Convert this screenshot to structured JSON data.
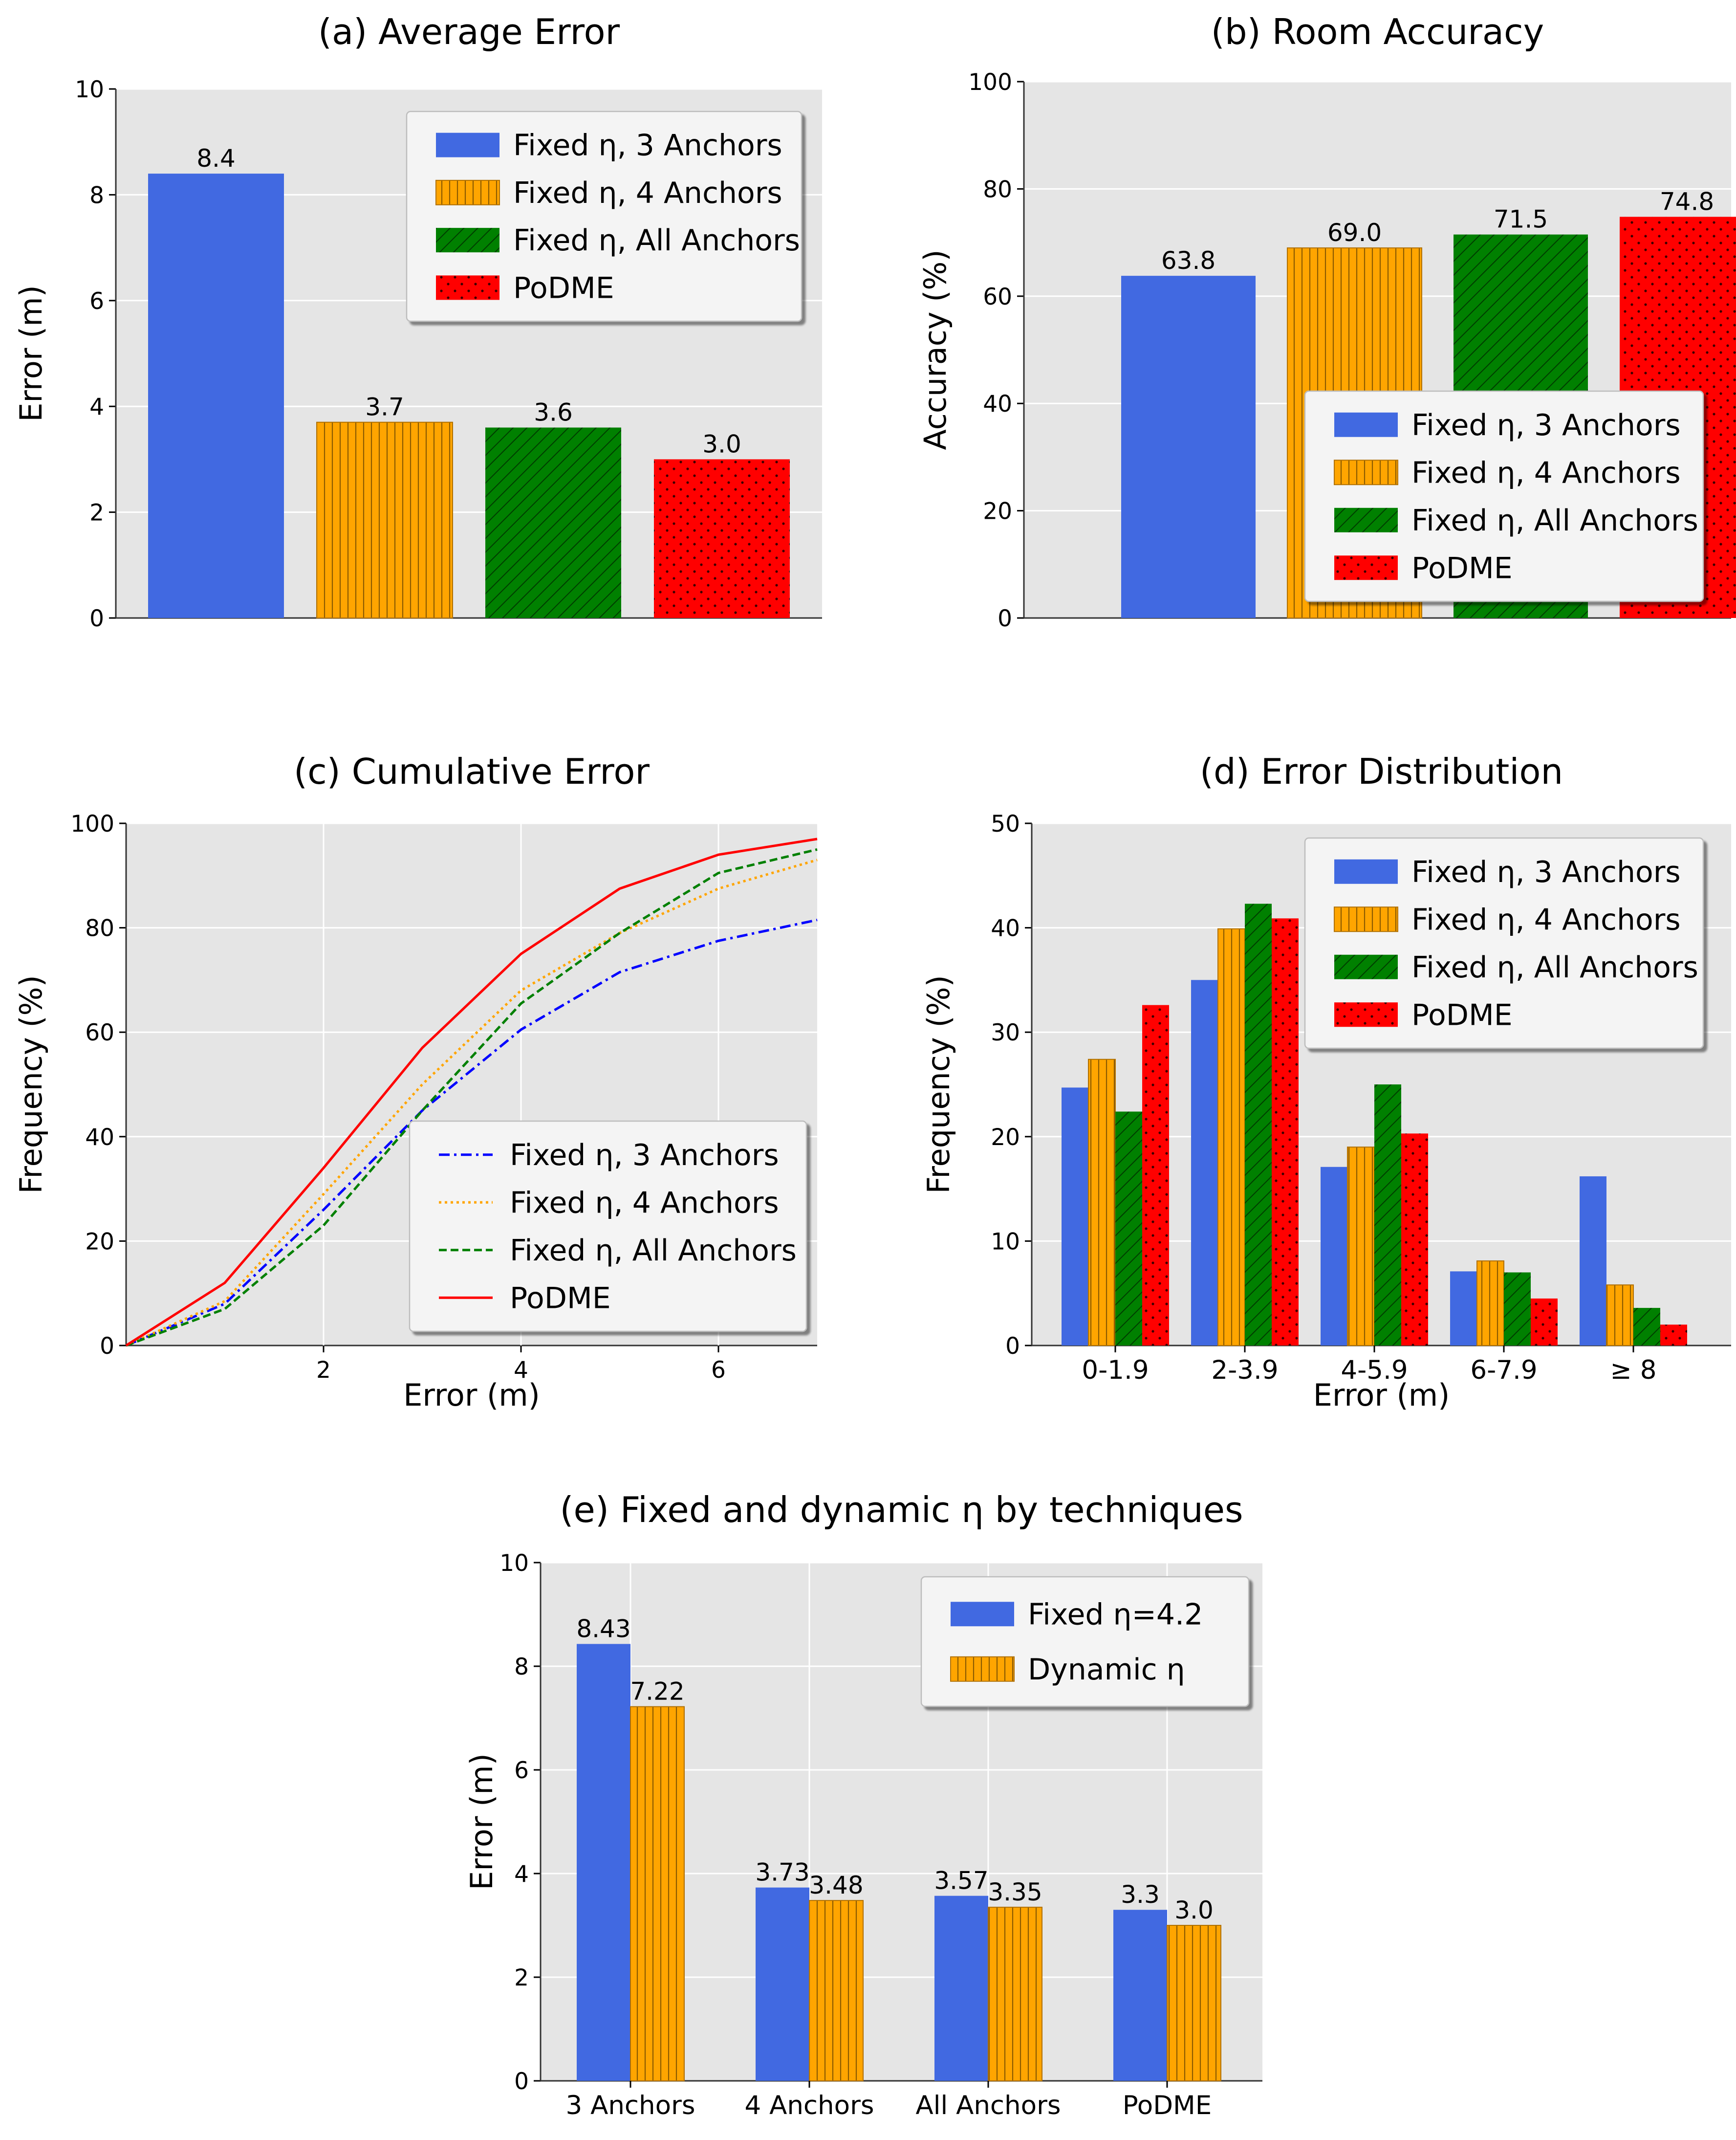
{
  "chart_data": [
    {
      "id": "a",
      "type": "bar",
      "title": "(a) Average Error",
      "xlabel": "",
      "ylabel": "Error (m)",
      "ylim": [
        0,
        10
      ],
      "yticks": [
        "0",
        "2",
        "4",
        "6",
        "8",
        "10"
      ],
      "grid": true,
      "legend_position": "top-right",
      "series": [
        {
          "name": "Fixed η, 3 Anchors",
          "value": 8.4,
          "label": "8.4",
          "color": "#4169E1",
          "pattern": "solid"
        },
        {
          "name": "Fixed η, 4 Anchors",
          "value": 3.7,
          "label": "3.7",
          "color": "#FFA500",
          "pattern": "vertical"
        },
        {
          "name": "Fixed η, All Anchors",
          "value": 3.6,
          "label": "3.6",
          "color": "#008000",
          "pattern": "diagonal"
        },
        {
          "name": "PoDME",
          "value": 3.0,
          "label": "3.0",
          "color": "#FF0000",
          "pattern": "dots"
        }
      ]
    },
    {
      "id": "b",
      "type": "bar",
      "title": "(b) Room Accuracy",
      "xlabel": "",
      "ylabel": "Accuracy (%)",
      "ylim": [
        0,
        100
      ],
      "yticks": [
        "0",
        "20",
        "40",
        "60",
        "80",
        "100"
      ],
      "grid": true,
      "legend_position": "lower-right",
      "series": [
        {
          "name": "Fixed η, 3 Anchors",
          "value": 63.8,
          "label": "63.8",
          "color": "#4169E1",
          "pattern": "solid"
        },
        {
          "name": "Fixed η, 4 Anchors",
          "value": 69.0,
          "label": "69.0",
          "color": "#FFA500",
          "pattern": "vertical"
        },
        {
          "name": "Fixed η, All Anchors",
          "value": 71.5,
          "label": "71.5",
          "color": "#008000",
          "pattern": "diagonal"
        },
        {
          "name": "PoDME",
          "value": 74.8,
          "label": "74.8",
          "color": "#FF0000",
          "pattern": "dots"
        }
      ]
    },
    {
      "id": "c",
      "type": "line",
      "title": "(c) Cumulative Error",
      "xlabel": "Error (m)",
      "ylabel": "Frequency (%)",
      "xlim": [
        0,
        7
      ],
      "ylim": [
        0,
        100
      ],
      "xticks": [
        "2",
        "4",
        "6"
      ],
      "yticks": [
        "0",
        "20",
        "40",
        "60",
        "80",
        "100"
      ],
      "grid": true,
      "legend_position": "lower-right",
      "x": [
        0,
        1,
        2,
        3,
        4,
        5,
        6,
        7
      ],
      "series": [
        {
          "name": "Fixed η, 3 Anchors",
          "values": [
            0,
            8,
            26,
            45,
            60.5,
            71.5,
            77.5,
            81.5
          ],
          "color": "#0000FF",
          "style": "dashdot"
        },
        {
          "name": "Fixed η, 4 Anchors",
          "values": [
            0,
            8.5,
            29,
            50,
            68,
            79,
            87.5,
            93
          ],
          "color": "#FFA500",
          "style": "dotted"
        },
        {
          "name": "Fixed η, All Anchors",
          "values": [
            0,
            7,
            23,
            45,
            65.5,
            79,
            90.5,
            95
          ],
          "color": "#008000",
          "style": "dashed"
        },
        {
          "name": "PoDME",
          "values": [
            0,
            12,
            34,
            57,
            75,
            87.5,
            94,
            97
          ],
          "color": "#FF0000",
          "style": "solid"
        }
      ]
    },
    {
      "id": "d",
      "type": "bar",
      "title": "(d) Error Distribution",
      "xlabel": "Error (m)",
      "ylabel": "Frequency (%)",
      "ylim": [
        0,
        50
      ],
      "yticks": [
        "0",
        "10",
        "20",
        "30",
        "40",
        "50"
      ],
      "grid": true,
      "legend_position": "top-right",
      "categories": [
        "0-1.9",
        "2-3.9",
        "4-5.9",
        "6-7.9",
        "≥ 8"
      ],
      "series": [
        {
          "name": "Fixed η, 3 Anchors",
          "values": [
            24.7,
            35,
            17.1,
            7.1,
            16.2
          ],
          "color": "#4169E1",
          "pattern": "solid"
        },
        {
          "name": "Fixed η, 4 Anchors",
          "values": [
            27.4,
            39.9,
            19,
            8.1,
            5.8
          ],
          "color": "#FFA500",
          "pattern": "vertical"
        },
        {
          "name": "Fixed η, All Anchors",
          "values": [
            22.4,
            42.3,
            25,
            7,
            3.6
          ],
          "color": "#008000",
          "pattern": "diagonal"
        },
        {
          "name": "PoDME",
          "values": [
            32.6,
            40.9,
            20.3,
            4.5,
            2
          ],
          "color": "#FF0000",
          "pattern": "dots"
        }
      ]
    },
    {
      "id": "e",
      "type": "bar",
      "title": "(e) Fixed and dynamic η by techniques",
      "xlabel": "",
      "ylabel": "Error (m)",
      "ylim": [
        0,
        10
      ],
      "yticks": [
        "0",
        "2",
        "4",
        "6",
        "8",
        "10"
      ],
      "grid": true,
      "legend_position": "top-right",
      "categories": [
        "3 Anchors",
        "4 Anchors",
        "All Anchors",
        "PoDME"
      ],
      "series": [
        {
          "name": "Fixed η=4.2",
          "values": [
            8.43,
            3.73,
            3.57,
            3.3
          ],
          "labels": [
            "8.43",
            "3.73",
            "3.57",
            "3.3"
          ],
          "color": "#4169E1",
          "pattern": "solid"
        },
        {
          "name": "Dynamic η",
          "values": [
            7.22,
            3.48,
            3.35,
            3.0
          ],
          "labels": [
            "7.22",
            "3.48",
            "3.35",
            "3.0"
          ],
          "color": "#FFA500",
          "pattern": "vertical"
        }
      ]
    }
  ]
}
